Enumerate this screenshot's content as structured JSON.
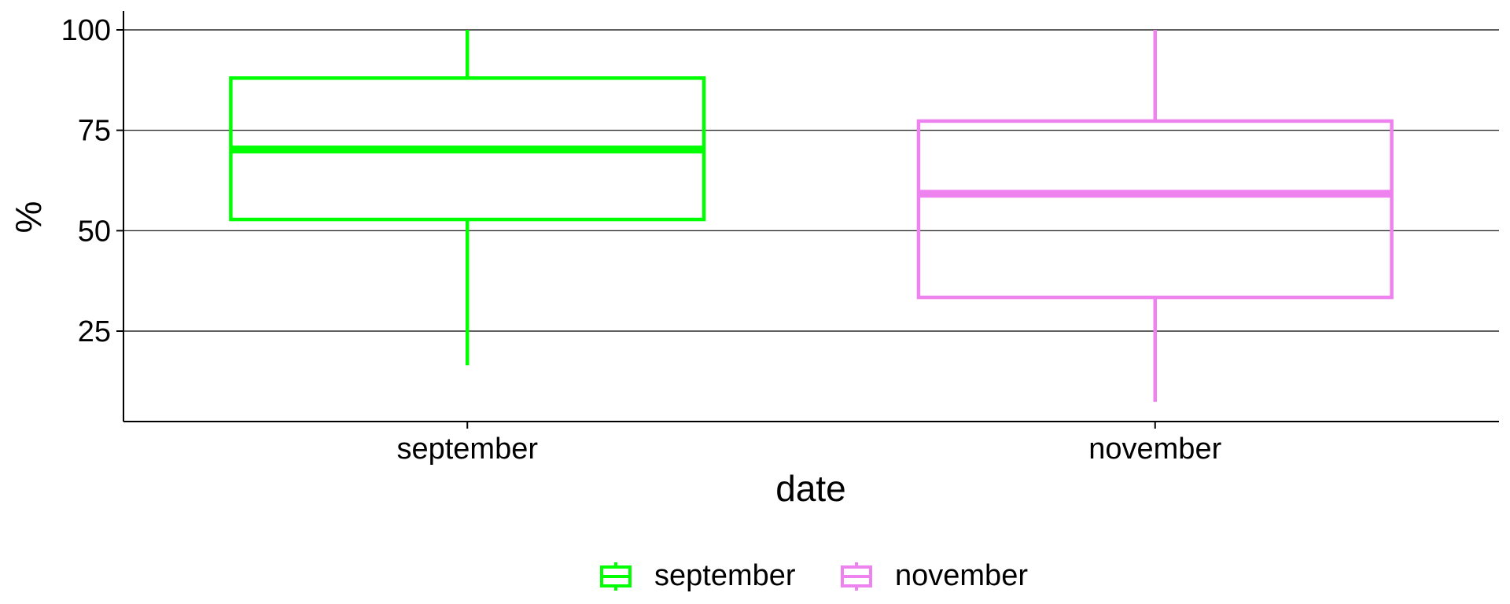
{
  "chart_data": {
    "type": "box",
    "title": "",
    "xlabel": "date",
    "ylabel": "%",
    "categories": [
      "september",
      "november"
    ],
    "ylim": [
      4,
      104
    ],
    "yticks": [
      25,
      50,
      75,
      100
    ],
    "grid": "horizontal major lines",
    "legend": "bottom",
    "series": [
      {
        "name": "september",
        "color": "#00FF00",
        "min": 16.5,
        "q1": 52.8,
        "median": 70.2,
        "q3": 88.0,
        "max": 100
      },
      {
        "name": "november",
        "color": "#EE82EE",
        "min": 7.4,
        "q1": 33.4,
        "median": 59.2,
        "q3": 77.3,
        "max": 100
      }
    ]
  }
}
